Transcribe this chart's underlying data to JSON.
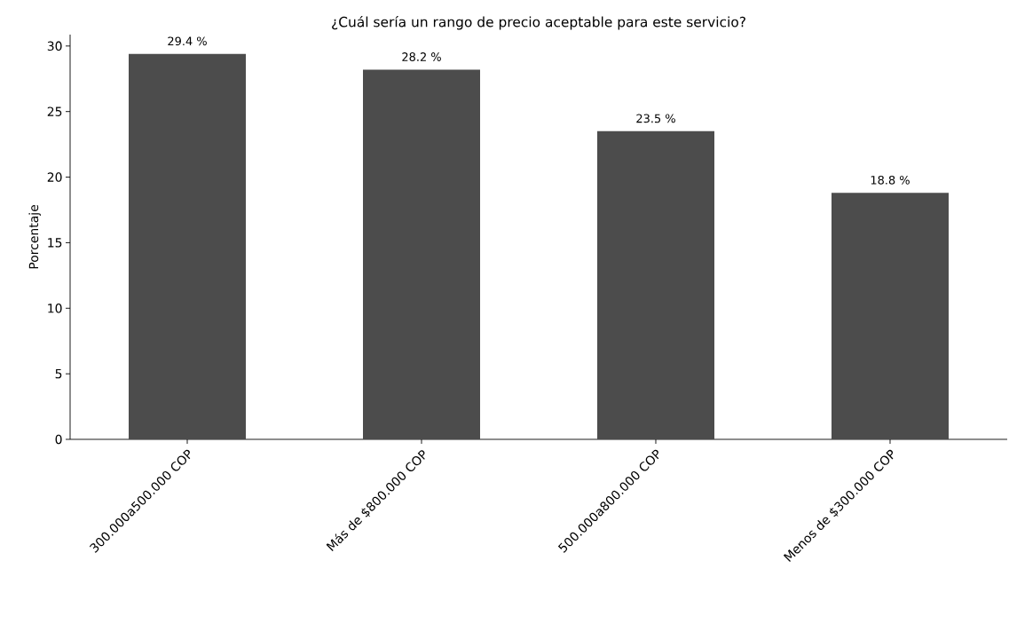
{
  "chart_data": {
    "type": "bar",
    "title": "¿Cuál sería un rango de precio aceptable para este servicio?",
    "ylabel": "Porcentaje",
    "categories": [
      "300.000a500.000 COP",
      "Más de $800.000 COP",
      "500.000a800.000 COP",
      "Menos de $300.000 COP"
    ],
    "values": [
      29.4,
      28.2,
      23.5,
      18.8
    ],
    "value_labels": [
      "29.4 %",
      "28.2 %",
      "23.5 %",
      "18.8 %"
    ],
    "color": "#4c4c4c",
    "ylim": [
      0,
      30.87
    ],
    "yticks": [
      0,
      5,
      10,
      15,
      20,
      25,
      30
    ],
    "grid": false
  }
}
